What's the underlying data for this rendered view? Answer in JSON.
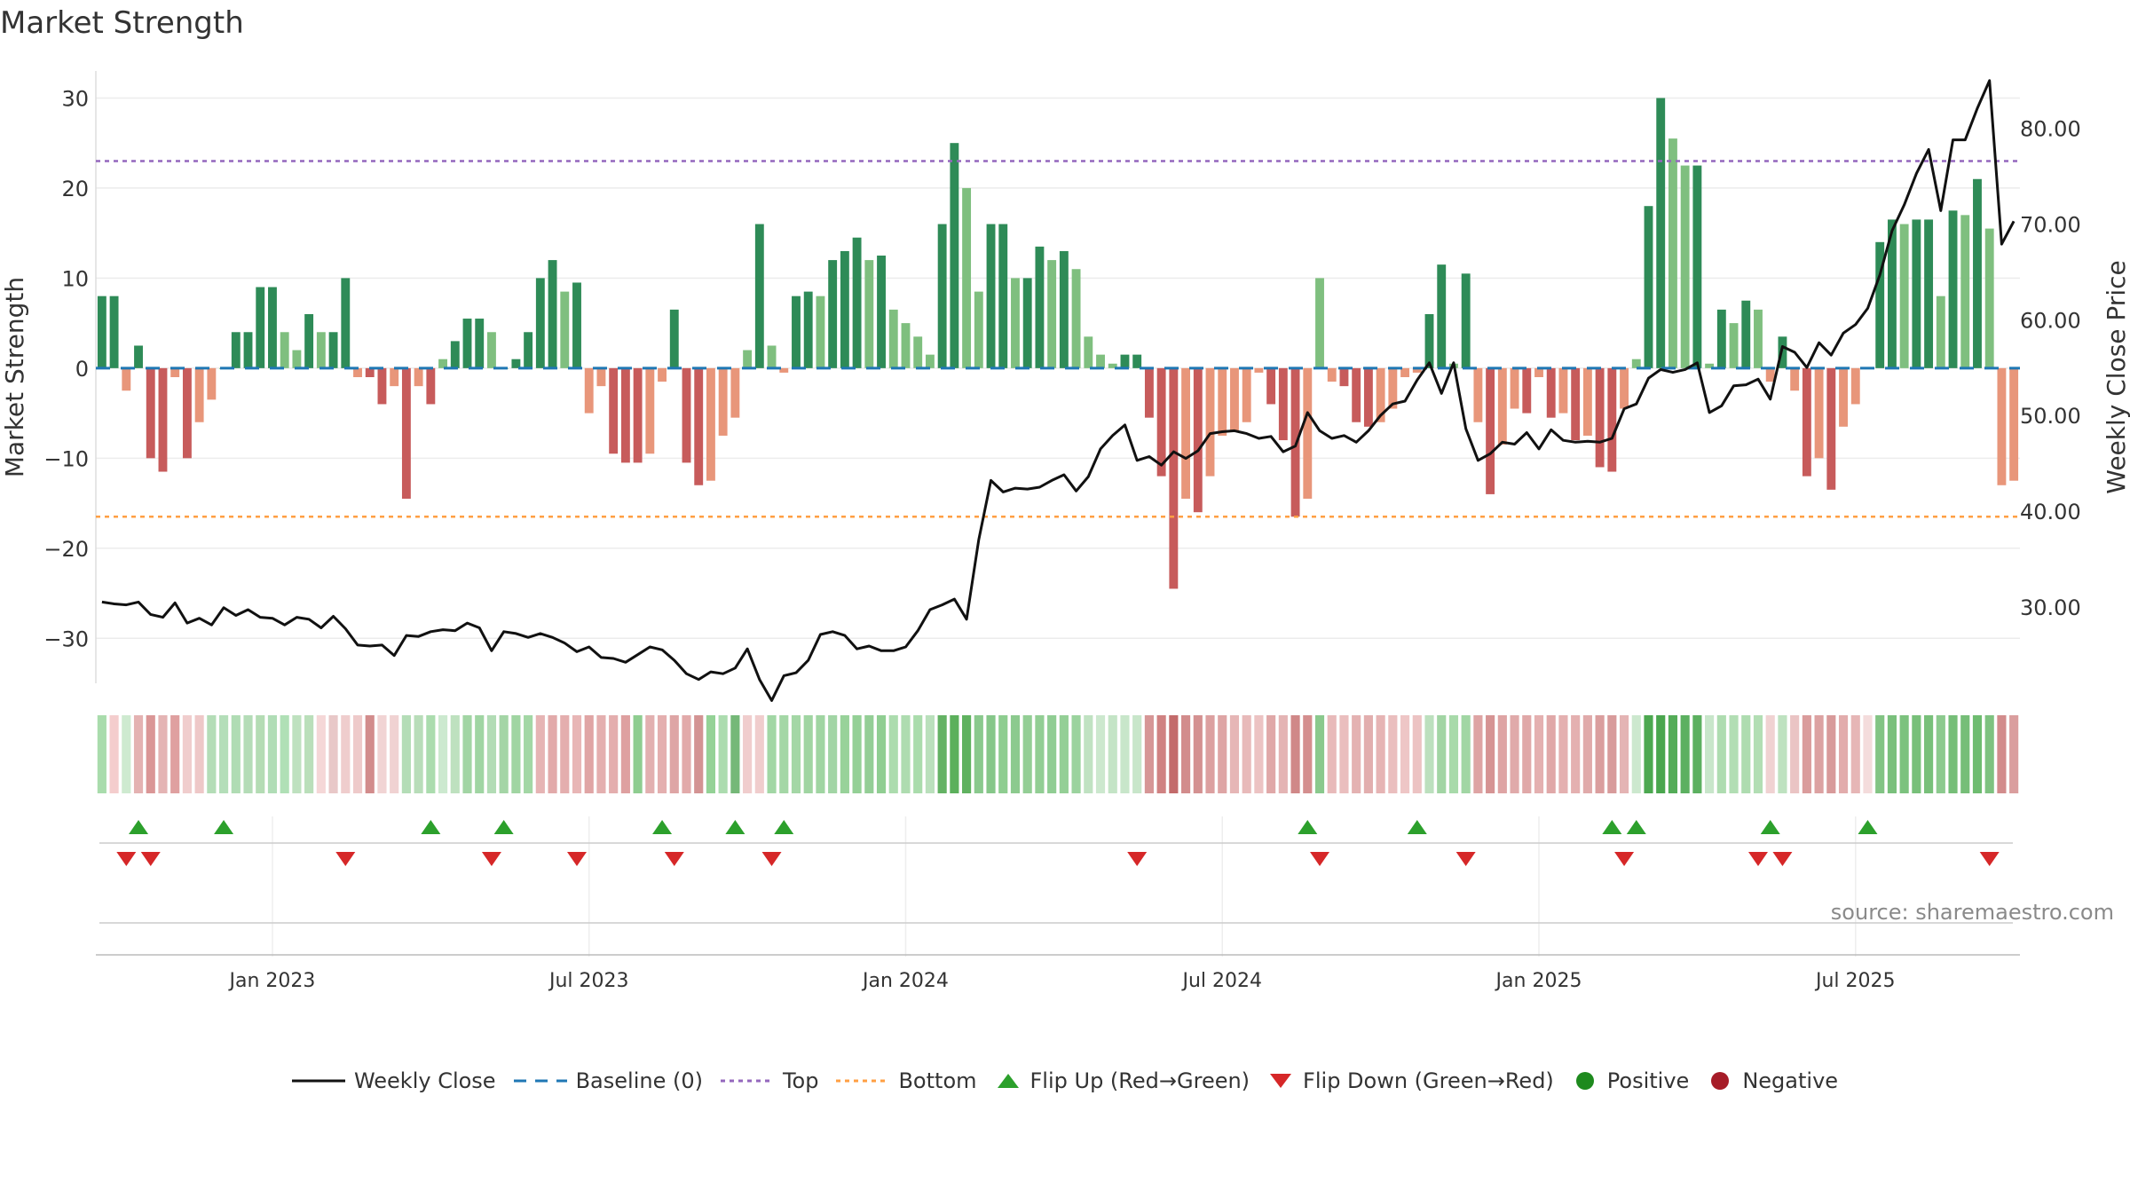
{
  "chart_data": {
    "type": "bar",
    "title": "Market Strength",
    "ylabel": "Market Strength",
    "y2label": "Weekly Close Price",
    "ylim": [
      -35,
      33
    ],
    "y2lim": [
      22,
      86
    ],
    "yticks": [
      "30",
      "20",
      "10",
      "0",
      "−10",
      "−20",
      "−30"
    ],
    "ytick_values": [
      30,
      20,
      10,
      0,
      -10,
      -20,
      -30
    ],
    "y2ticks": [
      "80.00",
      "70.00",
      "60.00",
      "50.00",
      "40.00",
      "30.00"
    ],
    "y2tick_values": [
      80,
      70,
      60,
      50,
      40,
      30
    ],
    "xticks": [
      "Jan 2023",
      "Jul 2023",
      "Jan 2024",
      "Jul 2024",
      "Jan 2025",
      "Jul 2025"
    ],
    "xtick_weeks": [
      14,
      40,
      66,
      92,
      118,
      144
    ],
    "top_level": 23,
    "bottom_level": -16.5,
    "strength": [
      8,
      8,
      -2.5,
      2.5,
      -10,
      -11.5,
      -1,
      -10,
      -6,
      -3.5,
      0,
      4,
      4,
      9,
      9,
      4,
      2,
      6,
      4,
      4,
      10,
      -1,
      -1,
      -4,
      -2,
      -14.5,
      -2,
      -4,
      1,
      3,
      5.5,
      5.5,
      4,
      0,
      1,
      4,
      10,
      12,
      8.5,
      9.5,
      -5,
      -2,
      -9.5,
      -10.5,
      -10.5,
      -9.5,
      -1.5,
      6.5,
      -10.5,
      -13,
      -12.5,
      -7.5,
      -5.5,
      2,
      16,
      2.5,
      -0.5,
      8,
      8.5,
      8,
      12,
      13,
      14.5,
      12,
      12.5,
      6.5,
      5,
      3.5,
      1.5,
      16,
      25,
      20,
      8.5,
      16,
      16,
      10,
      10,
      13.5,
      12,
      13,
      11,
      3.5,
      1.5,
      0.5,
      1.5,
      1.5,
      -5.5,
      -12,
      -24.5,
      -14.5,
      -16,
      -12,
      -7.5,
      -7,
      -6,
      -0.5,
      -4,
      -8,
      -16.5,
      -14.5,
      10,
      -1.5,
      -2,
      -6,
      -6.5,
      -6,
      -4.5,
      -1,
      -0.5,
      6,
      11.5,
      0.5,
      10.5,
      -6,
      -14,
      -8.5,
      -4.5,
      -5,
      -1,
      -5.5,
      -5,
      -8,
      -7.5,
      -11,
      -11.5,
      -4.5,
      1,
      18,
      30,
      25.5,
      22.5,
      22.5,
      0.5,
      6.5,
      5,
      7.5,
      6.5,
      -1.5,
      3.5,
      -2.5,
      -12,
      -10,
      -13.5,
      -6.5,
      -4,
      0,
      14,
      16.5,
      16,
      16.5,
      16.5,
      8,
      17.5,
      17,
      21,
      15.5,
      -13,
      -12.5
    ],
    "close": [
      30.5,
      30.3,
      30.2,
      30.5,
      29.2,
      28.9,
      30.4,
      28.3,
      28.8,
      28.1,
      29.9,
      29.1,
      29.7,
      28.9,
      28.8,
      28.1,
      28.9,
      28.7,
      27.8,
      29.0,
      27.7,
      26.0,
      25.9,
      26.0,
      24.9,
      27.0,
      26.9,
      27.4,
      27.6,
      27.5,
      28.3,
      27.8,
      25.4,
      27.4,
      27.2,
      26.8,
      27.2,
      26.8,
      26.2,
      25.3,
      25.8,
      24.7,
      24.6,
      24.2,
      25.0,
      25.8,
      25.5,
      24.4,
      23.0,
      22.4,
      23.2,
      23.0,
      23.6,
      25.6,
      22.4,
      20.2,
      22.8,
      23.1,
      24.4,
      27.1,
      27.4,
      27.0,
      25.6,
      25.9,
      25.4,
      25.4,
      25.8,
      27.5,
      29.7,
      30.2,
      30.8,
      28.7,
      37.0,
      43.2,
      42.0,
      42.4,
      42.3,
      42.5,
      43.2,
      43.8,
      42.1,
      43.6,
      46.5,
      47.9,
      49.0,
      45.3,
      45.7,
      44.8,
      46.2,
      45.5,
      46.3,
      48.1,
      48.3,
      48.4,
      48.1,
      47.6,
      47.8,
      46.2,
      46.8,
      50.3,
      48.4,
      47.6,
      47.9,
      47.2,
      48.4,
      50.0,
      51.2,
      51.5,
      53.7,
      55.5,
      52.3,
      55.5,
      48.6,
      45.3,
      46.0,
      47.2,
      47.0,
      48.2,
      46.5,
      48.5,
      47.4,
      47.2,
      47.3,
      47.2,
      47.6,
      50.7,
      51.2,
      53.9,
      54.8,
      54.5,
      54.8,
      55.5,
      50.3,
      51.0,
      53.1,
      53.2,
      53.8,
      51.7,
      57.2,
      56.6,
      55.0,
      57.6,
      56.3,
      58.6,
      59.5,
      61.2,
      64.7,
      69.3,
      72.0,
      75.3,
      77.8,
      71.4,
      78.8,
      78.8,
      82.1,
      85.0,
      67.9,
      70.3
    ],
    "heat_rgb": [
      [
        169,
        220,
        172
      ],
      [
        244,
        205,
        205
      ],
      [
        206,
        234,
        208
      ],
      [
        228,
        178,
        178
      ],
      [
        218,
        150,
        150
      ],
      [
        228,
        180,
        180
      ],
      [
        223,
        160,
        160
      ],
      [
        240,
        205,
        205
      ],
      [
        238,
        200,
        200
      ],
      [
        180,
        221,
        183
      ],
      [
        180,
        222,
        185
      ],
      [
        176,
        220,
        180
      ],
      [
        180,
        220,
        183
      ],
      [
        180,
        220,
        180
      ],
      [
        176,
        221,
        182
      ],
      [
        176,
        224,
        182
      ],
      [
        190,
        225,
        191
      ],
      [
        186,
        223,
        186
      ],
      [
        245,
        215,
        215
      ],
      [
        232,
        200,
        200
      ],
      [
        239,
        205,
        205
      ],
      [
        238,
        202,
        202
      ],
      [
        210,
        140,
        140
      ],
      [
        241,
        212,
        212
      ],
      [
        240,
        210,
        210
      ],
      [
        180,
        221,
        183
      ],
      [
        184,
        221,
        185
      ],
      [
        171,
        220,
        174
      ],
      [
        204,
        233,
        207
      ],
      [
        190,
        225,
        191
      ],
      [
        162,
        213,
        164
      ],
      [
        160,
        213,
        163
      ],
      [
        178,
        220,
        181
      ],
      [
        164,
        213,
        166
      ],
      [
        160,
        213,
        162
      ],
      [
        163,
        215,
        165
      ],
      [
        230,
        180,
        180
      ],
      [
        226,
        170,
        170
      ],
      [
        228,
        174,
        174
      ],
      [
        232,
        182,
        182
      ],
      [
        224,
        165,
        165
      ],
      [
        228,
        175,
        175
      ],
      [
        228,
        174,
        174
      ],
      [
        222,
        160,
        160
      ],
      [
        142,
        205,
        144
      ],
      [
        226,
        176,
        176
      ],
      [
        228,
        175,
        175
      ],
      [
        222,
        165,
        165
      ],
      [
        226,
        170,
        170
      ],
      [
        211,
        147,
        147
      ],
      [
        148,
        210,
        150
      ],
      [
        172,
        220,
        175
      ],
      [
        117,
        184,
        120
      ],
      [
        240,
        205,
        205
      ],
      [
        240,
        205,
        205
      ],
      [
        162,
        215,
        165
      ],
      [
        164,
        215,
        166
      ],
      [
        164,
        215,
        166
      ],
      [
        160,
        213,
        162
      ],
      [
        160,
        213,
        162
      ],
      [
        162,
        213,
        165
      ],
      [
        152,
        210,
        154
      ],
      [
        148,
        208,
        150
      ],
      [
        148,
        206,
        150
      ],
      [
        144,
        206,
        146
      ],
      [
        172,
        220,
        174
      ],
      [
        174,
        220,
        176
      ],
      [
        170,
        220,
        172
      ],
      [
        186,
        224,
        188
      ],
      [
        100,
        178,
        100
      ],
      [
        92,
        176,
        92
      ],
      [
        96,
        178,
        96
      ],
      [
        138,
        201,
        141
      ],
      [
        134,
        199,
        137
      ],
      [
        142,
        205,
        144
      ],
      [
        140,
        202,
        142
      ],
      [
        147,
        206,
        149
      ],
      [
        146,
        206,
        148
      ],
      [
        144,
        205,
        147
      ],
      [
        148,
        207,
        150
      ],
      [
        155,
        211,
        158
      ],
      [
        192,
        226,
        194
      ],
      [
        204,
        232,
        206
      ],
      [
        196,
        228,
        198
      ],
      [
        200,
        230,
        202
      ],
      [
        200,
        230,
        202
      ],
      [
        214,
        150,
        150
      ],
      [
        208,
        130,
        130
      ],
      [
        195,
        107,
        107
      ],
      [
        210,
        140,
        140
      ],
      [
        212,
        145,
        145
      ],
      [
        220,
        160,
        160
      ],
      [
        222,
        165,
        165
      ],
      [
        230,
        182,
        182
      ],
      [
        232,
        186,
        186
      ],
      [
        236,
        195,
        195
      ],
      [
        224,
        168,
        168
      ],
      [
        228,
        180,
        180
      ],
      [
        208,
        136,
        136
      ],
      [
        212,
        142,
        142
      ],
      [
        138,
        201,
        141
      ],
      [
        232,
        186,
        186
      ],
      [
        234,
        190,
        190
      ],
      [
        228,
        178,
        178
      ],
      [
        226,
        174,
        174
      ],
      [
        230,
        180,
        180
      ],
      [
        234,
        190,
        190
      ],
      [
        238,
        198,
        198
      ],
      [
        236,
        195,
        195
      ],
      [
        188,
        224,
        190
      ],
      [
        162,
        213,
        164
      ],
      [
        168,
        218,
        170
      ],
      [
        161,
        214,
        164
      ],
      [
        222,
        164,
        164
      ],
      [
        214,
        148,
        148
      ],
      [
        222,
        164,
        164
      ],
      [
        224,
        170,
        170
      ],
      [
        224,
        168,
        168
      ],
      [
        228,
        176,
        176
      ],
      [
        224,
        168,
        168
      ],
      [
        228,
        176,
        176
      ],
      [
        228,
        176,
        176
      ],
      [
        224,
        170,
        170
      ],
      [
        218,
        158,
        158
      ],
      [
        216,
        155,
        155
      ],
      [
        228,
        180,
        180
      ],
      [
        204,
        232,
        206
      ],
      [
        76,
        168,
        80
      ],
      [
        74,
        166,
        78
      ],
      [
        84,
        172,
        88
      ],
      [
        92,
        176,
        96
      ],
      [
        92,
        176,
        96
      ],
      [
        200,
        230,
        202
      ],
      [
        174,
        220,
        176
      ],
      [
        178,
        222,
        180
      ],
      [
        174,
        220,
        176
      ],
      [
        178,
        222,
        180
      ],
      [
        240,
        210,
        210
      ],
      [
        190,
        226,
        192
      ],
      [
        234,
        196,
        196
      ],
      [
        218,
        156,
        156
      ],
      [
        220,
        162,
        162
      ],
      [
        216,
        154,
        154
      ],
      [
        226,
        172,
        172
      ],
      [
        230,
        182,
        182
      ],
      [
        244,
        220,
        220
      ],
      [
        130,
        196,
        132
      ],
      [
        122,
        192,
        124
      ],
      [
        124,
        194,
        126
      ],
      [
        120,
        192,
        122
      ],
      [
        120,
        192,
        122
      ],
      [
        140,
        202,
        142
      ],
      [
        118,
        190,
        120
      ],
      [
        118,
        190,
        120
      ],
      [
        110,
        188,
        112
      ],
      [
        126,
        194,
        128
      ],
      [
        210,
        140,
        140
      ],
      [
        218,
        158,
        158
      ]
    ],
    "flip_up_weeks": [
      3,
      10,
      27,
      33,
      46,
      52,
      56,
      99,
      108,
      124,
      126,
      137,
      145
    ],
    "flip_down_weeks": [
      2,
      4,
      20,
      32,
      39,
      47,
      55,
      85,
      100,
      112,
      125,
      136,
      138,
      155
    ],
    "legend": [
      "Weekly Close",
      "Baseline (0)",
      "Top",
      "Bottom",
      "Flip Up (Red→Green)",
      "Flip Down (Green→Red)",
      "Positive",
      "Negative"
    ],
    "colors": {
      "strong_pos": "#2e8b57",
      "weak_pos": "#7fbf7f",
      "strong_neg": "#c75b5b",
      "weak_neg": "#e8967a",
      "close_line": "#111111",
      "baseline": "#1f77b4",
      "top": "#9467bd",
      "bottom": "#ff9f43",
      "flip_up": "#2ca02c",
      "flip_down": "#d62728",
      "positive_dot": "#1e8a1e",
      "negative_dot": "#a61c28"
    }
  },
  "source_note": "source: sharemaestro.com"
}
